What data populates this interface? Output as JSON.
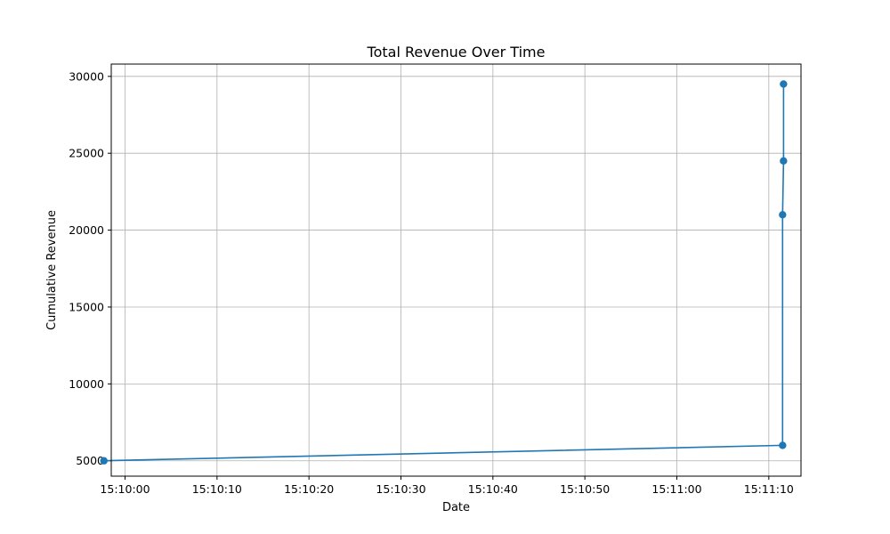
{
  "chart_data": {
    "type": "line",
    "title": "Total Revenue Over Time",
    "xlabel": "Date",
    "ylabel": "Cumulative Revenue",
    "x_ticks": [
      "15:10:00",
      "15:10:10",
      "15:10:20",
      "15:10:30",
      "15:10:40",
      "15:10:50",
      "15:11:00",
      "15:11:10"
    ],
    "y_ticks": [
      5000,
      10000,
      15000,
      20000,
      25000,
      30000
    ],
    "xlim": [
      "15:09:58.5",
      "15:11:13.5"
    ],
    "ylim": [
      4000,
      30800
    ],
    "grid": true,
    "color": "#1f77b4",
    "series": [
      {
        "points": [
          {
            "x": "15:09:57.7",
            "y": 5000
          },
          {
            "x": "15:11:11.5",
            "y": 6000
          },
          {
            "x": "15:11:11.5",
            "y": 21000
          },
          {
            "x": "15:11:11.6",
            "y": 24500
          },
          {
            "x": "15:11:11.6",
            "y": 29500
          }
        ]
      }
    ]
  }
}
